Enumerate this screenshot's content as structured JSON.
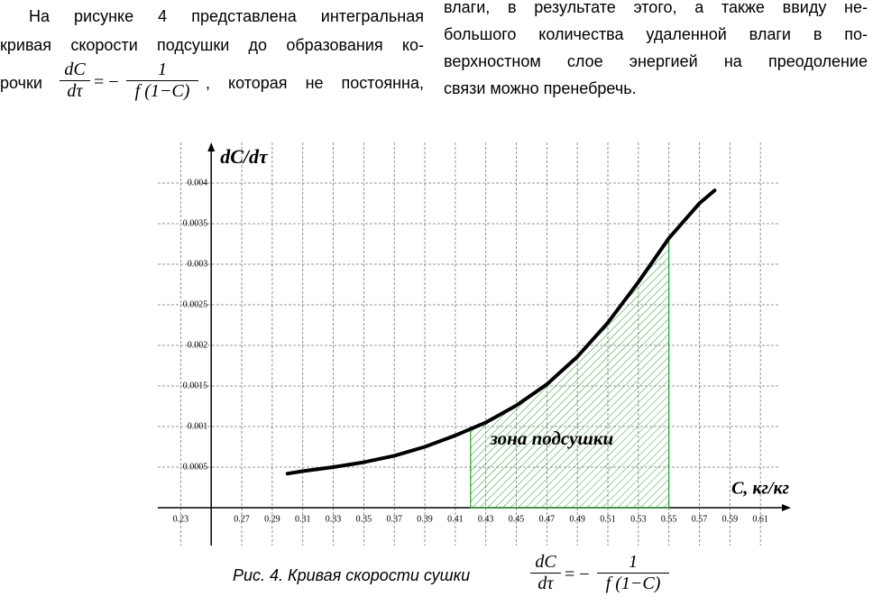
{
  "text": {
    "left": [
      "На рисунке 4 представлена интегральная",
      "кривая скорости подсушки до образования ко-",
      "рочки",
      ", которая не постоянна,"
    ],
    "right": [
      "влаги, в результате этого, а также ввиду не-",
      "большого количества удаленной влаги в по-",
      "верхностном слое энергией на преодоление",
      "связи можно пренебречь."
    ]
  },
  "formula": {
    "num": "dC",
    "den": "dτ",
    "sign": "= −",
    "rhs_num": "1",
    "rhs_den": "f (1−C)"
  },
  "caption": "Рис. 4. Кривая скорости сушки",
  "chart_data": {
    "type": "line",
    "y_label": "dC/dτ",
    "x_label": "C, кг/кг",
    "x": [
      0.3,
      0.31,
      0.33,
      0.35,
      0.37,
      0.39,
      0.41,
      0.42,
      0.43,
      0.45,
      0.47,
      0.49,
      0.51,
      0.53,
      0.55,
      0.57,
      0.58
    ],
    "series": [
      {
        "color": "#000000",
        "values": [
          0.00042,
          0.00045,
          0.0005,
          0.00056,
          0.00064,
          0.00075,
          0.00089,
          0.00097,
          0.00105,
          0.00126,
          0.00152,
          0.00186,
          0.00228,
          0.00278,
          0.00332,
          0.00375,
          0.00391
        ]
      }
    ],
    "highlight": {
      "label": "зона подсушки",
      "from": 0.42,
      "to": 0.55,
      "color": "#2e9e2e"
    },
    "xlim": [
      0.215,
      0.63
    ],
    "ylim": [
      0,
      0.0045
    ],
    "xticks": [
      0.23,
      0.27,
      0.29,
      0.31,
      0.33,
      0.35,
      0.37,
      0.39,
      0.41,
      0.43,
      0.45,
      0.47,
      0.49,
      0.51,
      0.53,
      0.55,
      0.57,
      0.59,
      0.61
    ],
    "yticks": [
      0.0005,
      0.001,
      0.0015,
      0.002,
      0.0025,
      0.003,
      0.0035,
      0.004
    ],
    "y_axis_at": 0.25,
    "grid": true
  }
}
